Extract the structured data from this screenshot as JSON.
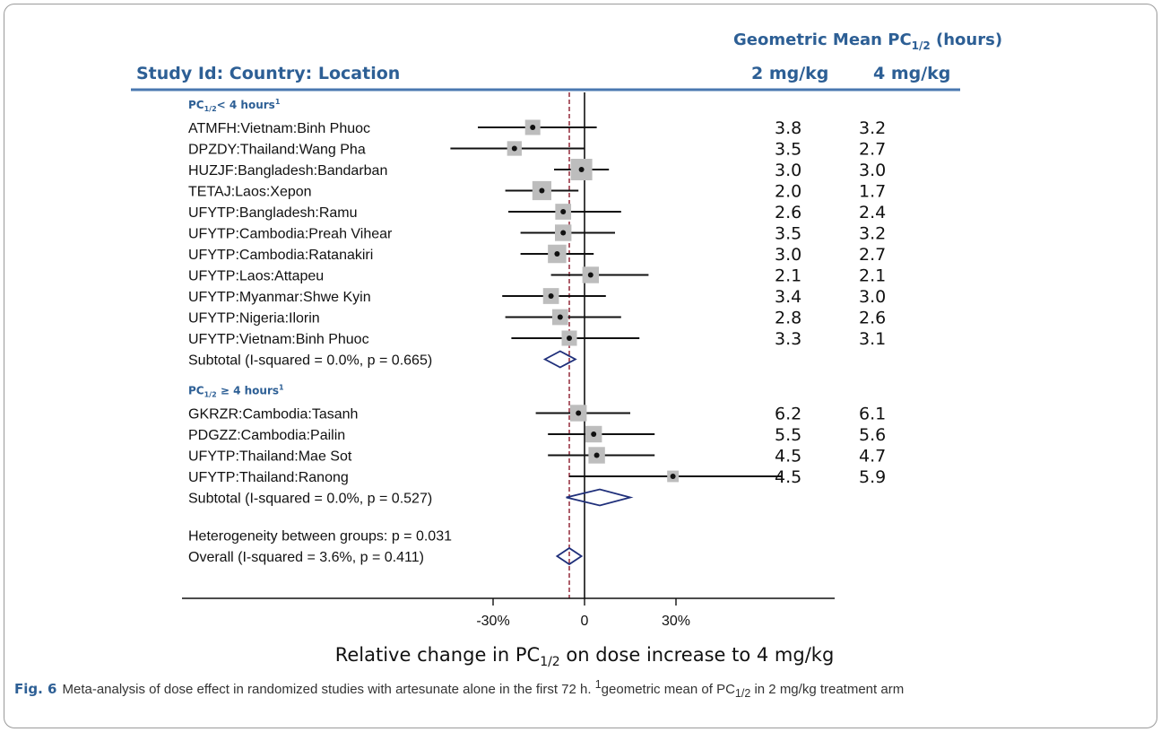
{
  "header": {
    "col_study": "Study Id: Country: Location",
    "gm_title": "Geometric Mean PC",
    "gm_sub": "1/2",
    "gm_unit": " (hours)",
    "col_2mg": "2 mg/kg",
    "col_4mg": "4 mg/kg"
  },
  "chart_data": {
    "type": "forest",
    "xlabel_prefix": "Relative change in PC",
    "xlabel_sub": "1/2",
    "xlabel_suffix": " on dose increase to 4 mg/kg",
    "xlim": [
      -46,
      85
    ],
    "ticks": [
      {
        "v": -30,
        "label": "-30%"
      },
      {
        "v": 0,
        "label": "0"
      },
      {
        "v": 30,
        "label": "30%"
      }
    ],
    "overall_ref": -5,
    "colors": {
      "point": "#111111",
      "box": "#bdbdbd",
      "diamond": "#1f2f7a",
      "ref": "#8b1a2b",
      "header": "#2d5f95"
    },
    "groups": [
      {
        "label_main": "PC",
        "label_sub": "1/2",
        "label_rest": "< 4 hours",
        "label_sup": "1",
        "studies": [
          {
            "label": "ATMFH:Vietnam:Binh Phuoc",
            "est": -17,
            "lo": -35,
            "hi": 4,
            "weight": 0.5,
            "gm2": "3.8",
            "gm4": "3.2"
          },
          {
            "label": "DPZDY:Thailand:Wang Pha",
            "est": -23,
            "lo": -44,
            "hi": 0,
            "weight": 0.45,
            "gm2": "3.5",
            "gm4": "2.7"
          },
          {
            "label": "HUZJF:Bangladesh:Bandarban",
            "est": -1,
            "lo": -10,
            "hi": 8,
            "weight": 1.0,
            "gm2": "3.0",
            "gm4": "3.0"
          },
          {
            "label": "TETAJ:Laos:Xepon",
            "est": -14,
            "lo": -26,
            "hi": -2,
            "weight": 0.8,
            "gm2": "2.0",
            "gm4": "1.7"
          },
          {
            "label": "UFYTP:Bangladesh:Ramu",
            "est": -7,
            "lo": -25,
            "hi": 12,
            "weight": 0.55,
            "gm2": "2.6",
            "gm4": "2.4"
          },
          {
            "label": "UFYTP:Cambodia:Preah Vihear",
            "est": -7,
            "lo": -21,
            "hi": 10,
            "weight": 0.6,
            "gm2": "3.5",
            "gm4": "3.2"
          },
          {
            "label": "UFYTP:Cambodia:Ratanakiri",
            "est": -9,
            "lo": -21,
            "hi": 3,
            "weight": 0.75,
            "gm2": "3.0",
            "gm4": "2.7"
          },
          {
            "label": "UFYTP:Laos:Attapeu",
            "est": 2,
            "lo": -11,
            "hi": 21,
            "weight": 0.6,
            "gm2": "2.1",
            "gm4": "2.1"
          },
          {
            "label": "UFYTP:Myanmar:Shwe Kyin",
            "est": -11,
            "lo": -27,
            "hi": 7,
            "weight": 0.55,
            "gm2": "3.4",
            "gm4": "3.0"
          },
          {
            "label": "UFYTP:Nigeria:Ilorin",
            "est": -8,
            "lo": -26,
            "hi": 12,
            "weight": 0.55,
            "gm2": "2.8",
            "gm4": "2.6"
          },
          {
            "label": "UFYTP:Vietnam:Binh Phuoc",
            "est": -5,
            "lo": -24,
            "hi": 18,
            "weight": 0.5,
            "gm2": "3.3",
            "gm4": "3.1"
          }
        ],
        "subtotal": {
          "label": "Subtotal  (I-squared = 0.0%, p = 0.665)",
          "est": -8,
          "lo": -13,
          "hi": -3
        }
      },
      {
        "label_main": "PC",
        "label_sub": "1/2",
        "label_rest": " ≥ 4 hours",
        "label_sup": "1",
        "studies": [
          {
            "label": "GKRZR:Cambodia:Tasanh",
            "est": -2,
            "lo": -16,
            "hi": 15,
            "weight": 0.6,
            "gm2": "6.2",
            "gm4": "6.1"
          },
          {
            "label": "PDGZZ:Cambodia:Pailin",
            "est": 3,
            "lo": -12,
            "hi": 23,
            "weight": 0.6,
            "gm2": "5.5",
            "gm4": "5.6"
          },
          {
            "label": "UFYTP:Thailand:Mae Sot",
            "est": 4,
            "lo": -12,
            "hi": 23,
            "weight": 0.6,
            "gm2": "4.5",
            "gm4": "4.7"
          },
          {
            "label": "UFYTP:Thailand:Ranong",
            "est": 29,
            "lo": -5,
            "hi": 65,
            "weight": 0.2,
            "gm2": "4.5",
            "gm4": "5.9"
          }
        ],
        "subtotal": {
          "label": "Subtotal  (I-squared = 0.0%, p = 0.527)",
          "est": 5,
          "lo": -6,
          "hi": 15
        }
      }
    ],
    "heterogeneity": "Heterogeneity between groups: p = 0.031",
    "overall": {
      "label": "Overall  (I-squared = 3.6%, p = 0.411)",
      "est": -5,
      "lo": -9,
      "hi": -1
    }
  },
  "caption": {
    "fig": "Fig. 6",
    "text_a": "Meta-analysis of dose effect in randomized studies with artesunate alone in the first 72 h. ",
    "sup": "1",
    "text_b": "geometric mean of PC",
    "sub": "1/2",
    "text_c": " in 2 mg/kg treatment arm"
  }
}
